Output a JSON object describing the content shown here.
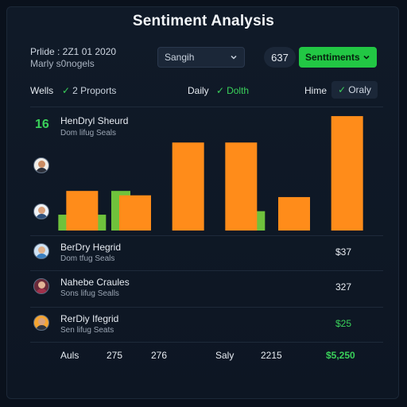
{
  "title": "Sentiment Analysis",
  "header": {
    "line1": "Prlide : 2Z1 01 2020",
    "line2": "Marly s0nogels"
  },
  "search": {
    "label": "Sangih"
  },
  "badge": {
    "count": "637"
  },
  "sentiment_button": {
    "label": "Senttiments"
  },
  "filters": [
    {
      "label": "Wells",
      "value": "2 Proports"
    },
    {
      "label": "Daily",
      "value": "Dolth"
    },
    {
      "label": "Hime",
      "value": "Oraly"
    }
  ],
  "top_metric": {
    "number": "16",
    "title": "HenDryl Sheurd",
    "subtitle": "Dom lifug Seals"
  },
  "rows": [
    {
      "title": "BerDry Hegrid",
      "subtitle": "Dom tfug Seals",
      "value": "$37"
    },
    {
      "title": "Nahebe Craules",
      "subtitle": "Sons lifug Sealls",
      "value": "327"
    },
    {
      "title": "RerDiy Ifegrid",
      "subtitle": "Sen lifug Seats",
      "value": "$25"
    }
  ],
  "footer": {
    "label1": "Auls",
    "val1": "275",
    "val2": "276",
    "label2": "Saly",
    "val3": "2215",
    "total": "$5,250"
  },
  "colors": {
    "accent_green": "#22c744",
    "bar_orange": "#ff8c1a",
    "bar_green": "#6fc23c"
  },
  "chart_data": {
    "type": "bar",
    "categories": [
      "1",
      "2",
      "3",
      "4",
      "5",
      "6"
    ],
    "series": [
      {
        "values": [
          18,
          45,
          0,
          0,
          0,
          0
        ]
      },
      {
        "values": [
          45,
          40,
          100,
          100,
          38,
          130
        ]
      },
      {
        "values": [
          18,
          0,
          0,
          22,
          0,
          0
        ]
      }
    ],
    "ylim": [
      0,
      140
    ],
    "grid": false
  }
}
